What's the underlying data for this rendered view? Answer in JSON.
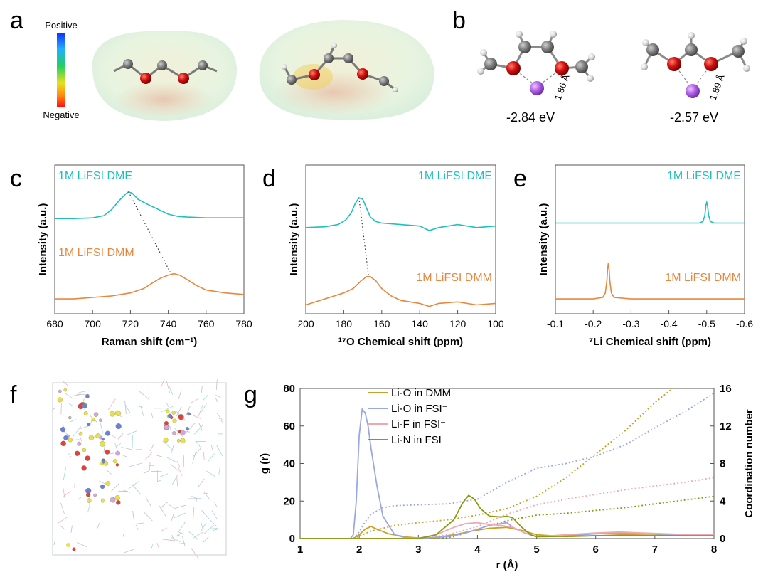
{
  "panels": {
    "a": "a",
    "b": "b",
    "c": "c",
    "d": "d",
    "e": "e",
    "f": "f",
    "g": "g"
  },
  "colorbar": {
    "top_label": "Positive",
    "bottom_label": "Negative"
  },
  "binding": {
    "dme": {
      "distance": "1.86 Å",
      "energy": "-2.84 eV"
    },
    "dmm": {
      "distance": "1.89 Å",
      "energy": "-2.57 eV"
    }
  },
  "colors": {
    "dme": "#20bfc0",
    "dmm": "#e8873e",
    "gold": "#c8a028",
    "blue": "#9aa8e0",
    "pink": "#efa8b0",
    "olive": "#8a9a10"
  },
  "chart_data": [
    {
      "id": "c",
      "type": "line",
      "xlabel": "Raman shift (cm⁻¹)",
      "ylabel": "Intensity (a.u.)",
      "xlim": [
        680,
        780
      ],
      "xticks": [
        "680",
        "700",
        "720",
        "740",
        "760",
        "780"
      ],
      "series": [
        {
          "name": "1M LiFSI DME",
          "x": [
            680,
            690,
            700,
            706,
            710,
            714,
            717,
            719,
            721,
            724,
            727,
            730,
            735,
            740,
            745,
            750,
            760,
            770,
            780
          ],
          "y": [
            0.64,
            0.64,
            0.645,
            0.66,
            0.7,
            0.76,
            0.8,
            0.82,
            0.81,
            0.77,
            0.75,
            0.73,
            0.7,
            0.67,
            0.655,
            0.65,
            0.645,
            0.645,
            0.645
          ]
        },
        {
          "name": "1M LiFSI DMM",
          "x": [
            680,
            690,
            700,
            710,
            720,
            727,
            732,
            736,
            740,
            743,
            746,
            750,
            755,
            760,
            770,
            780
          ],
          "y": [
            0.1,
            0.1,
            0.11,
            0.12,
            0.14,
            0.17,
            0.21,
            0.24,
            0.26,
            0.27,
            0.26,
            0.23,
            0.19,
            0.16,
            0.14,
            0.13
          ]
        }
      ],
      "guide": {
        "from": [
          719,
          0.82
        ],
        "to": [
          741,
          0.28
        ]
      }
    },
    {
      "id": "d",
      "type": "line",
      "xlabel": "¹⁷O Chemical shift (ppm)",
      "ylabel": "Intensity (a.u.)",
      "xlim": [
        200,
        100
      ],
      "xticks": [
        "200",
        "180",
        "160",
        "140",
        "120",
        "100"
      ],
      "series": [
        {
          "name": "1M LiFSI DME",
          "x": [
            200,
            190,
            183,
            179,
            176,
            174,
            172,
            170,
            168,
            166,
            163,
            160,
            150,
            140,
            135,
            130,
            120,
            110,
            100
          ],
          "y": [
            0.58,
            0.585,
            0.6,
            0.63,
            0.68,
            0.74,
            0.78,
            0.77,
            0.71,
            0.65,
            0.62,
            0.61,
            0.6,
            0.59,
            0.56,
            0.58,
            0.6,
            0.58,
            0.59
          ]
        },
        {
          "name": "1M LiFSI DMM",
          "x": [
            200,
            190,
            180,
            175,
            171,
            168,
            166,
            163,
            160,
            155,
            150,
            140,
            135,
            130,
            120,
            110,
            100
          ],
          "y": [
            0.06,
            0.1,
            0.14,
            0.17,
            0.22,
            0.25,
            0.25,
            0.22,
            0.17,
            0.12,
            0.09,
            0.07,
            0.05,
            0.07,
            0.08,
            0.06,
            0.07
          ]
        }
      ],
      "guide": {
        "from": [
          172,
          0.78
        ],
        "to": [
          167,
          0.26
        ]
      }
    },
    {
      "id": "e",
      "type": "line",
      "xlabel": "⁷Li Chemical shift (ppm)",
      "ylabel": "Intensity (a.u.)",
      "xlim": [
        -0.1,
        -0.6
      ],
      "xticks": [
        "-0.1",
        "-0.2",
        "-0.3",
        "-0.4",
        "-0.5",
        "-0.6"
      ],
      "series": [
        {
          "name": "1M LiFSI DME",
          "x": [
            -0.1,
            -0.3,
            -0.48,
            -0.49,
            -0.495,
            -0.498,
            -0.5,
            -0.502,
            -0.505,
            -0.51,
            -0.52,
            -0.6
          ],
          "y": [
            0.61,
            0.61,
            0.61,
            0.62,
            0.66,
            0.73,
            0.75,
            0.73,
            0.66,
            0.62,
            0.61,
            0.61
          ]
        },
        {
          "name": "1M LiFSI DMM",
          "x": [
            -0.1,
            -0.2,
            -0.225,
            -0.232,
            -0.236,
            -0.238,
            -0.24,
            -0.242,
            -0.244,
            -0.248,
            -0.255,
            -0.3,
            -0.6
          ],
          "y": [
            0.1,
            0.1,
            0.11,
            0.14,
            0.22,
            0.3,
            0.34,
            0.3,
            0.22,
            0.14,
            0.11,
            0.1,
            0.1
          ]
        }
      ]
    },
    {
      "id": "g",
      "type": "line",
      "xlabel": "r (Å)",
      "ylabel": "g (r)",
      "y2label": "Coordination number",
      "xlim": [
        1,
        8
      ],
      "ylim": [
        0,
        80
      ],
      "y2lim": [
        0,
        16
      ],
      "xticks": [
        "1",
        "2",
        "3",
        "4",
        "5",
        "6",
        "7",
        "8"
      ],
      "yticks": [
        "0",
        "20",
        "40",
        "60",
        "80"
      ],
      "y2ticks": [
        "0",
        "4",
        "8",
        "12",
        "16"
      ],
      "legend": [
        "Li-O in DMM",
        "Li-O in FSI⁻",
        "Li-F in FSI⁻",
        "Li-N in FSI⁻"
      ],
      "series": [
        {
          "name": "Li-O in DMM",
          "x": [
            1,
            1.9,
            2.0,
            2.1,
            2.2,
            2.3,
            2.5,
            2.8,
            3.0,
            3.3,
            3.6,
            3.9,
            4.2,
            4.5,
            4.8,
            5.0,
            5.5,
            6.0,
            6.5,
            7.0,
            7.5,
            8.0
          ],
          "y": [
            0,
            0,
            2,
            5,
            6.5,
            5,
            2.5,
            0.8,
            0.3,
            0.5,
            2,
            4,
            5.5,
            6,
            4,
            2,
            1,
            1.5,
            2,
            1.8,
            1.5,
            1.5
          ]
        },
        {
          "name": "Li-O in FSI⁻",
          "x": [
            1,
            1.85,
            1.9,
            1.95,
            2.0,
            2.05,
            2.1,
            2.15,
            2.2,
            2.3,
            2.4,
            2.6,
            2.8,
            3.0,
            3.5,
            3.8,
            4.0,
            4.2,
            4.4,
            4.5,
            4.6,
            4.8,
            5.0,
            5.5,
            6.0,
            6.5,
            7.0,
            7.5,
            8.0
          ],
          "y": [
            0,
            0,
            2,
            20,
            55,
            69,
            67,
            60,
            48,
            28,
            12,
            2,
            0.3,
            0.2,
            1,
            3,
            5,
            7,
            8,
            8.5,
            6,
            3,
            1,
            1.5,
            2.5,
            3,
            2.5,
            2,
            2
          ]
        },
        {
          "name": "Li-F in FSI⁻",
          "x": [
            1,
            2.5,
            3.0,
            3.3,
            3.6,
            3.8,
            4.0,
            4.2,
            4.4,
            4.6,
            4.8,
            5.0,
            5.5,
            6.0,
            6.4,
            6.8,
            7.2,
            7.6,
            8.0
          ],
          "y": [
            0,
            0,
            0.2,
            2,
            6,
            8,
            8.5,
            7.5,
            7,
            6,
            3,
            1,
            2,
            3,
            3.5,
            3,
            2.5,
            2,
            2
          ]
        },
        {
          "name": "Li-N in FSI⁻",
          "x": [
            1,
            3.0,
            3.3,
            3.6,
            3.75,
            3.85,
            3.95,
            4.05,
            4.2,
            4.4,
            4.5,
            4.6,
            4.75,
            4.9,
            5.0,
            5.5,
            6.0,
            6.5,
            7.0,
            7.5,
            8.0
          ],
          "y": [
            0,
            0,
            2,
            10,
            19,
            23,
            21,
            16,
            12,
            11.5,
            12,
            11,
            6,
            2,
            1,
            1.2,
            1.5,
            1.5,
            1.5,
            1.5,
            1.5
          ]
        }
      ],
      "coordination_series": [
        {
          "name": "Li-O in DMM",
          "x": [
            1,
            1.9,
            2.2,
            2.6,
            3.0,
            3.5,
            4.0,
            4.5,
            5.0,
            5.5,
            6.0,
            6.5,
            7.0,
            7.3
          ],
          "y": [
            0,
            0,
            0.8,
            1.4,
            1.7,
            2.0,
            2.5,
            3.2,
            4.5,
            6.5,
            9.0,
            11.5,
            14.5,
            16
          ]
        },
        {
          "name": "Li-O in FSI⁻",
          "x": [
            1,
            1.9,
            2.0,
            2.1,
            2.2,
            2.4,
            2.6,
            3.0,
            3.5,
            4.0,
            4.5,
            5.0,
            5.5,
            6.0,
            6.5,
            7.0,
            7.5,
            8.0
          ],
          "y": [
            0,
            0,
            0.7,
            1.8,
            2.6,
            3.3,
            3.5,
            3.6,
            3.7,
            4.2,
            6.0,
            7.5,
            8.0,
            8.8,
            10.0,
            11.8,
            13.5,
            15.5
          ]
        },
        {
          "name": "Li-F in FSI⁻",
          "x": [
            1,
            3.0,
            3.5,
            4.0,
            4.5,
            5.0,
            5.5,
            6.0,
            6.5,
            7.0,
            7.5,
            8.0
          ],
          "y": [
            0,
            0,
            0.4,
            1.3,
            2.6,
            3.6,
            4.2,
            4.7,
            5.2,
            5.6,
            6.0,
            6.5
          ]
        },
        {
          "name": "Li-N in FSI⁻",
          "x": [
            1,
            3.3,
            3.6,
            3.9,
            4.2,
            4.5,
            5.0,
            5.5,
            6.0,
            6.5,
            7.0,
            7.5,
            8.0
          ],
          "y": [
            0,
            0,
            0.2,
            0.8,
            1.4,
            1.9,
            2.5,
            2.7,
            3.0,
            3.3,
            3.7,
            4.1,
            4.5
          ]
        }
      ]
    }
  ]
}
